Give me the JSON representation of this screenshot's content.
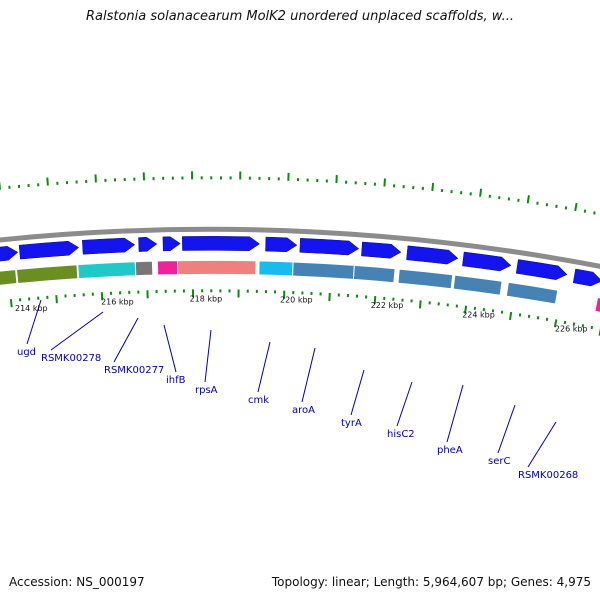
{
  "title": "Ralstonia solanacearum MolK2 unordered unplaced scaffolds, w...",
  "footer": {
    "accession": "Accession: NS_000197",
    "summary": "Topology: linear; Length: 5,964,607 bp; Genes: 4,975"
  },
  "colors": {
    "forward_gene": "#1414ee",
    "backbone": "#8c8c8c",
    "tick": "#118811",
    "label": "#0000aa",
    "cog_olive": "#6b8e23",
    "cog_cyan": "#20c8c8",
    "cog_gray": "#777777",
    "cog_pink": "#ee2299",
    "cog_salmon": "#f08080",
    "cog_skyblue": "#19bbee",
    "cog_steelblue": "#4682b4"
  },
  "kbp_labels": [
    "214 kbp",
    "216 kbp",
    "218 kbp",
    "220 kbp",
    "222 kbp",
    "224 kbp",
    "226 kbp"
  ],
  "gene_labels": [
    "ugd",
    "RSMK00278",
    "RSMK00277",
    "ihfB",
    "rpsA",
    "cmk",
    "aroA",
    "tyrA",
    "hisC2",
    "pheA",
    "serC",
    "RSMK00268"
  ]
}
